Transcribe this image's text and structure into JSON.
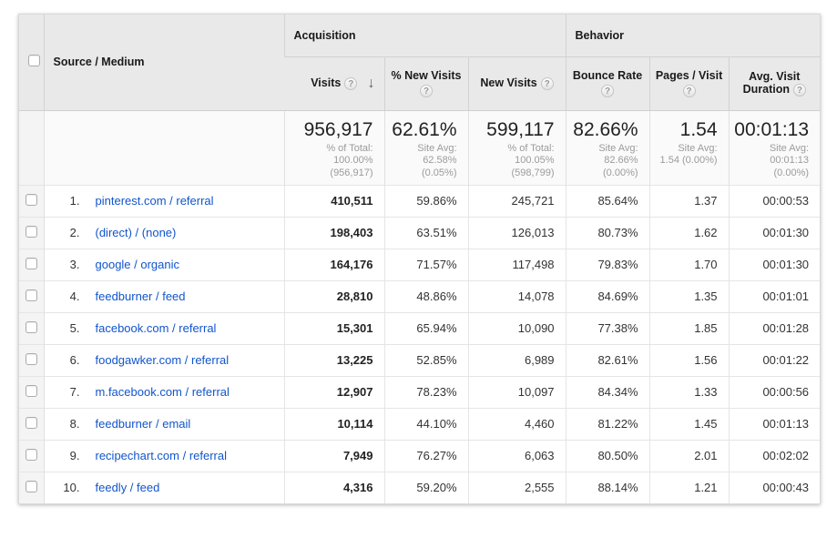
{
  "colors": {
    "link": "#1155cc",
    "header_bg": "#e9e9e9",
    "row_border": "#e5e5e5"
  },
  "header": {
    "acquisition_label": "Acquisition",
    "behavior_label": "Behavior",
    "source_medium_label": "Source / Medium",
    "visits_label": "Visits",
    "pct_new_visits_label": "% New Visits",
    "new_visits_label": "New Visits",
    "bounce_rate_label": "Bounce Rate",
    "pages_visit_label": "Pages / Visit",
    "avg_visit_line1": "Avg. Visit",
    "avg_visit_line2": "Duration",
    "help_glyph": "?",
    "sort_desc_glyph": "↓"
  },
  "summary": {
    "visits": {
      "value": "956,917",
      "sub1": "% of Total:",
      "sub2": "100.00%",
      "sub3": "(956,917)"
    },
    "pct_new_visits": {
      "value": "62.61%",
      "sub1": "Site Avg:",
      "sub2": "62.58%",
      "sub3": "(0.05%)"
    },
    "new_visits": {
      "value": "599,117",
      "sub1": "% of Total:",
      "sub2": "100.05%",
      "sub3": "(598,799)"
    },
    "bounce_rate": {
      "value": "82.66%",
      "sub1": "Site Avg:",
      "sub2": "82.66%",
      "sub3": "(0.00%)"
    },
    "pages_visit": {
      "value": "1.54",
      "sub1": "Site Avg:",
      "sub2": "1.54 (0.00%)",
      "sub3": ""
    },
    "avg_duration": {
      "value": "00:01:13",
      "sub1": "Site Avg:",
      "sub2": "00:01:13",
      "sub3": "(0.00%)"
    }
  },
  "rows": [
    {
      "rank": "1.",
      "source": "pinterest.com / referral",
      "visits": "410,511",
      "pct_new": "59.86%",
      "new_visits": "245,721",
      "bounce": "85.64%",
      "pages": "1.37",
      "duration": "00:00:53"
    },
    {
      "rank": "2.",
      "source": "(direct) / (none)",
      "visits": "198,403",
      "pct_new": "63.51%",
      "new_visits": "126,013",
      "bounce": "80.73%",
      "pages": "1.62",
      "duration": "00:01:30"
    },
    {
      "rank": "3.",
      "source": "google / organic",
      "visits": "164,176",
      "pct_new": "71.57%",
      "new_visits": "117,498",
      "bounce": "79.83%",
      "pages": "1.70",
      "duration": "00:01:30"
    },
    {
      "rank": "4.",
      "source": "feedburner / feed",
      "visits": "28,810",
      "pct_new": "48.86%",
      "new_visits": "14,078",
      "bounce": "84.69%",
      "pages": "1.35",
      "duration": "00:01:01"
    },
    {
      "rank": "5.",
      "source": "facebook.com / referral",
      "visits": "15,301",
      "pct_new": "65.94%",
      "new_visits": "10,090",
      "bounce": "77.38%",
      "pages": "1.85",
      "duration": "00:01:28"
    },
    {
      "rank": "6.",
      "source": "foodgawker.com / referral",
      "visits": "13,225",
      "pct_new": "52.85%",
      "new_visits": "6,989",
      "bounce": "82.61%",
      "pages": "1.56",
      "duration": "00:01:22"
    },
    {
      "rank": "7.",
      "source": "m.facebook.com / referral",
      "visits": "12,907",
      "pct_new": "78.23%",
      "new_visits": "10,097",
      "bounce": "84.34%",
      "pages": "1.33",
      "duration": "00:00:56"
    },
    {
      "rank": "8.",
      "source": "feedburner / email",
      "visits": "10,114",
      "pct_new": "44.10%",
      "new_visits": "4,460",
      "bounce": "81.22%",
      "pages": "1.45",
      "duration": "00:01:13"
    },
    {
      "rank": "9.",
      "source": "recipechart.com / referral",
      "visits": "7,949",
      "pct_new": "76.27%",
      "new_visits": "6,063",
      "bounce": "80.50%",
      "pages": "2.01",
      "duration": "00:02:02"
    },
    {
      "rank": "10.",
      "source": "feedly / feed",
      "visits": "4,316",
      "pct_new": "59.20%",
      "new_visits": "2,555",
      "bounce": "88.14%",
      "pages": "1.21",
      "duration": "00:00:43"
    }
  ]
}
